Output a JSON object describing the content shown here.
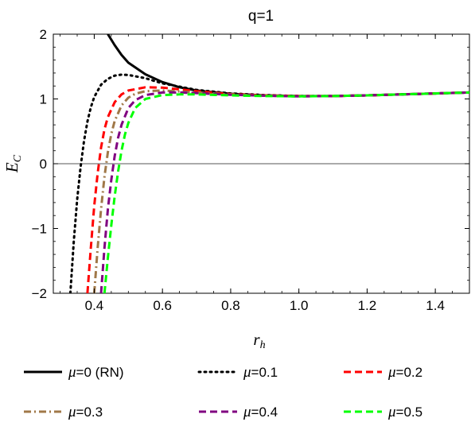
{
  "chart_data": {
    "type": "line",
    "title": "q=1",
    "xlabel": "r",
    "xlabel_sub": "h",
    "ylabel": "E",
    "ylabel_sub": "C",
    "xlim": [
      0.28,
      1.5
    ],
    "ylim": [
      -2,
      2
    ],
    "xticks": [
      0.4,
      0.6,
      0.8,
      1.0,
      1.2,
      1.4
    ],
    "xtick_labels": [
      "0.4",
      "0.6",
      "0.8",
      "1.0",
      "1.2",
      "1.4"
    ],
    "yticks": [
      -2,
      -1,
      0,
      1,
      2
    ],
    "ytick_labels": [
      "−2",
      "−1",
      "0",
      "1",
      "2"
    ],
    "zero_line": true,
    "grid": false,
    "legend_position": "bottom",
    "series": [
      {
        "name": "μ=0 (RN)",
        "label_prefix": "μ",
        "label_suffix": "=0 (RN)",
        "color": "#000000",
        "dash": "solid",
        "x": [
          0.44,
          0.46,
          0.48,
          0.5,
          0.55,
          0.6,
          0.65,
          0.7,
          0.8,
          0.9,
          1.0,
          1.1,
          1.2,
          1.3,
          1.4,
          1.5
        ],
        "y": [
          2.0,
          1.83,
          1.68,
          1.56,
          1.38,
          1.26,
          1.18,
          1.13,
          1.08,
          1.055,
          1.045,
          1.045,
          1.055,
          1.07,
          1.085,
          1.1
        ]
      },
      {
        "name": "μ=0.1",
        "label_prefix": "μ",
        "label_suffix": "=0.1",
        "color": "#000000",
        "dash": "dotted",
        "x": [
          0.33,
          0.34,
          0.35,
          0.36,
          0.37,
          0.38,
          0.39,
          0.4,
          0.42,
          0.44,
          0.46,
          0.48,
          0.5,
          0.55,
          0.6,
          0.7,
          0.8,
          0.9,
          1.0,
          1.1,
          1.2,
          1.3,
          1.4,
          1.5
        ],
        "y": [
          -2.0,
          -1.2,
          -0.55,
          -0.05,
          0.35,
          0.65,
          0.87,
          1.03,
          1.22,
          1.31,
          1.36,
          1.375,
          1.37,
          1.32,
          1.24,
          1.14,
          1.085,
          1.06,
          1.045,
          1.045,
          1.055,
          1.07,
          1.085,
          1.1
        ]
      },
      {
        "name": "μ=0.2",
        "label_prefix": "μ",
        "label_suffix": "=0.2",
        "color": "#ff0000",
        "dash": "dashed",
        "x": [
          0.38,
          0.39,
          0.4,
          0.41,
          0.42,
          0.43,
          0.44,
          0.46,
          0.48,
          0.5,
          0.55,
          0.6,
          0.7,
          0.8,
          0.9,
          1.0,
          1.1,
          1.2,
          1.3,
          1.4,
          1.5
        ],
        "y": [
          -2.0,
          -1.3,
          -0.65,
          -0.15,
          0.25,
          0.53,
          0.72,
          0.95,
          1.07,
          1.13,
          1.18,
          1.175,
          1.12,
          1.075,
          1.055,
          1.045,
          1.045,
          1.055,
          1.07,
          1.085,
          1.1
        ]
      },
      {
        "name": "μ=0.3",
        "label_prefix": "μ",
        "label_suffix": "=0.3",
        "color": "#a07848",
        "dash": "dashdot",
        "x": [
          0.4,
          0.41,
          0.42,
          0.43,
          0.44,
          0.45,
          0.46,
          0.48,
          0.5,
          0.52,
          0.55,
          0.6,
          0.7,
          0.8,
          0.9,
          1.0,
          1.1,
          1.2,
          1.3,
          1.4,
          1.5
        ],
        "y": [
          -2.0,
          -1.3,
          -0.7,
          -0.2,
          0.18,
          0.46,
          0.66,
          0.9,
          1.02,
          1.08,
          1.12,
          1.13,
          1.1,
          1.07,
          1.05,
          1.04,
          1.045,
          1.055,
          1.07,
          1.085,
          1.1
        ]
      },
      {
        "name": "μ=0.4",
        "label_prefix": "μ",
        "label_suffix": "=0.4",
        "color": "#800080",
        "dash": "dashed",
        "x": [
          0.42,
          0.43,
          0.44,
          0.45,
          0.46,
          0.47,
          0.48,
          0.5,
          0.52,
          0.55,
          0.6,
          0.65,
          0.7,
          0.8,
          0.9,
          1.0,
          1.1,
          1.2,
          1.3,
          1.4,
          1.5
        ],
        "y": [
          -2.0,
          -1.3,
          -0.7,
          -0.25,
          0.12,
          0.4,
          0.6,
          0.86,
          0.98,
          1.06,
          1.1,
          1.1,
          1.09,
          1.065,
          1.05,
          1.04,
          1.045,
          1.055,
          1.07,
          1.085,
          1.1
        ]
      },
      {
        "name": "μ=0.5",
        "label_prefix": "μ",
        "label_suffix": "=0.5",
        "color": "#00ff00",
        "dash": "dashed",
        "x": [
          0.43,
          0.44,
          0.45,
          0.46,
          0.47,
          0.48,
          0.49,
          0.5,
          0.52,
          0.55,
          0.6,
          0.65,
          0.7,
          0.8,
          0.9,
          1.0,
          1.1,
          1.2,
          1.3,
          1.4,
          1.5
        ],
        "y": [
          -2.0,
          -1.45,
          -0.95,
          -0.5,
          -0.12,
          0.2,
          0.45,
          0.63,
          0.86,
          1.0,
          1.06,
          1.07,
          1.07,
          1.055,
          1.045,
          1.04,
          1.045,
          1.055,
          1.07,
          1.085,
          1.1
        ]
      }
    ]
  }
}
